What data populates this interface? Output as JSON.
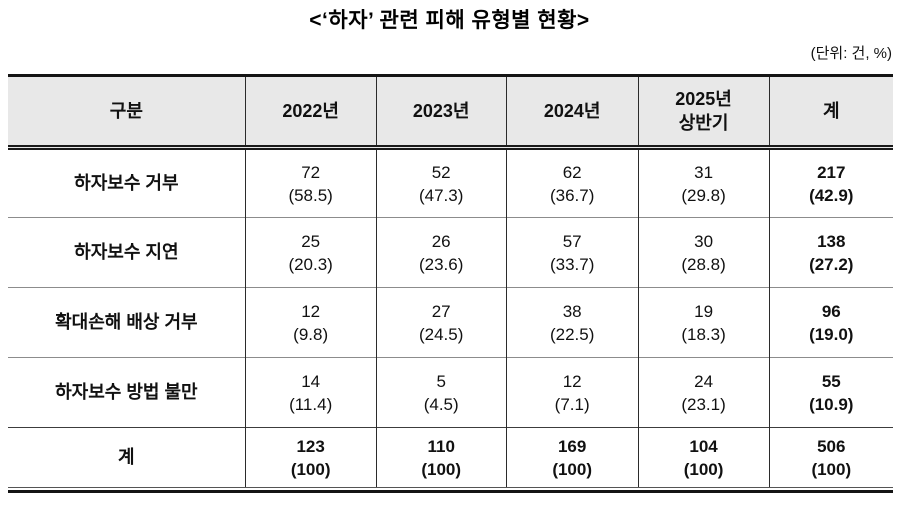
{
  "title": "<‘하자’ 관련 피해 유형별 현황>",
  "unit_label": "(단위: 건, %)",
  "colors": {
    "header_bg": "#e8e8e8",
    "border_dark": "#141414",
    "row_divider": "#8c8c8c",
    "text": "#111111"
  },
  "table": {
    "columns": [
      "구분",
      "2022년",
      "2023년",
      "2024년",
      "2025년\n상반기",
      "계"
    ],
    "rows": [
      {
        "label": "하자보수 거부",
        "values": [
          "72",
          "52",
          "62",
          "31",
          "217"
        ],
        "pcts": [
          "(58.5)",
          "(47.3)",
          "(36.7)",
          "(29.8)",
          "(42.9)"
        ]
      },
      {
        "label": "하자보수 지연",
        "values": [
          "25",
          "26",
          "57",
          "30",
          "138"
        ],
        "pcts": [
          "(20.3)",
          "(23.6)",
          "(33.7)",
          "(28.8)",
          "(27.2)"
        ]
      },
      {
        "label": "확대손해 배상 거부",
        "values": [
          "12",
          "27",
          "38",
          "19",
          "96"
        ],
        "pcts": [
          "(9.8)",
          "(24.5)",
          "(22.5)",
          "(18.3)",
          "(19.0)"
        ]
      },
      {
        "label": "하자보수 방법 불만",
        "values": [
          "14",
          "5",
          "12",
          "24",
          "55"
        ],
        "pcts": [
          "(11.4)",
          "(4.5)",
          "(7.1)",
          "(23.1)",
          "(10.9)"
        ]
      }
    ],
    "total_row": {
      "label": "계",
      "values": [
        "123",
        "110",
        "169",
        "104",
        "506"
      ],
      "pcts": [
        "(100)",
        "(100)",
        "(100)",
        "(100)",
        "(100)"
      ]
    }
  }
}
